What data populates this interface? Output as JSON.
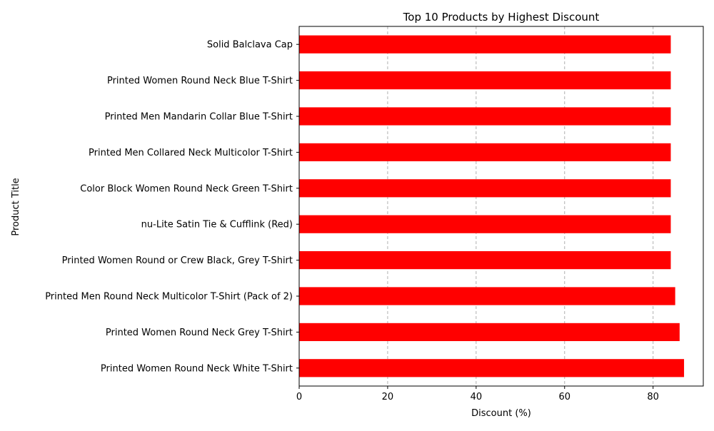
{
  "chart_data": {
    "type": "bar",
    "orientation": "horizontal",
    "title": "Top 10 Products by Highest Discount",
    "xlabel": "Discount (%)",
    "ylabel": "Product Title",
    "xlim": [
      0,
      91.35
    ],
    "xticks": [
      0,
      20,
      40,
      60,
      80
    ],
    "grid": "x-axis, dashed",
    "categories": [
      "Printed Women Round Neck White T-Shirt",
      "Printed Women Round Neck Grey T-Shirt",
      "Printed Men Round Neck Multicolor T-Shirt  (Pack of 2)",
      "Printed Women Round or Crew Black, Grey T-Shirt",
      "nu-Lite Satin Tie & Cufflink  (Red)",
      "Color Block Women Round Neck Green T-Shirt",
      "Printed Men Collared Neck Multicolor T-Shirt",
      "Printed Men Mandarin Collar Blue T-Shirt",
      "Printed Women Round Neck Blue T-Shirt",
      "Solid Balclava Cap"
    ],
    "values": [
      87,
      86,
      85,
      84,
      84,
      84,
      84,
      84,
      84,
      84
    ],
    "colors": {
      "bar": "#ff0000",
      "grid": "#b0b0b0",
      "axis": "#000000"
    }
  }
}
